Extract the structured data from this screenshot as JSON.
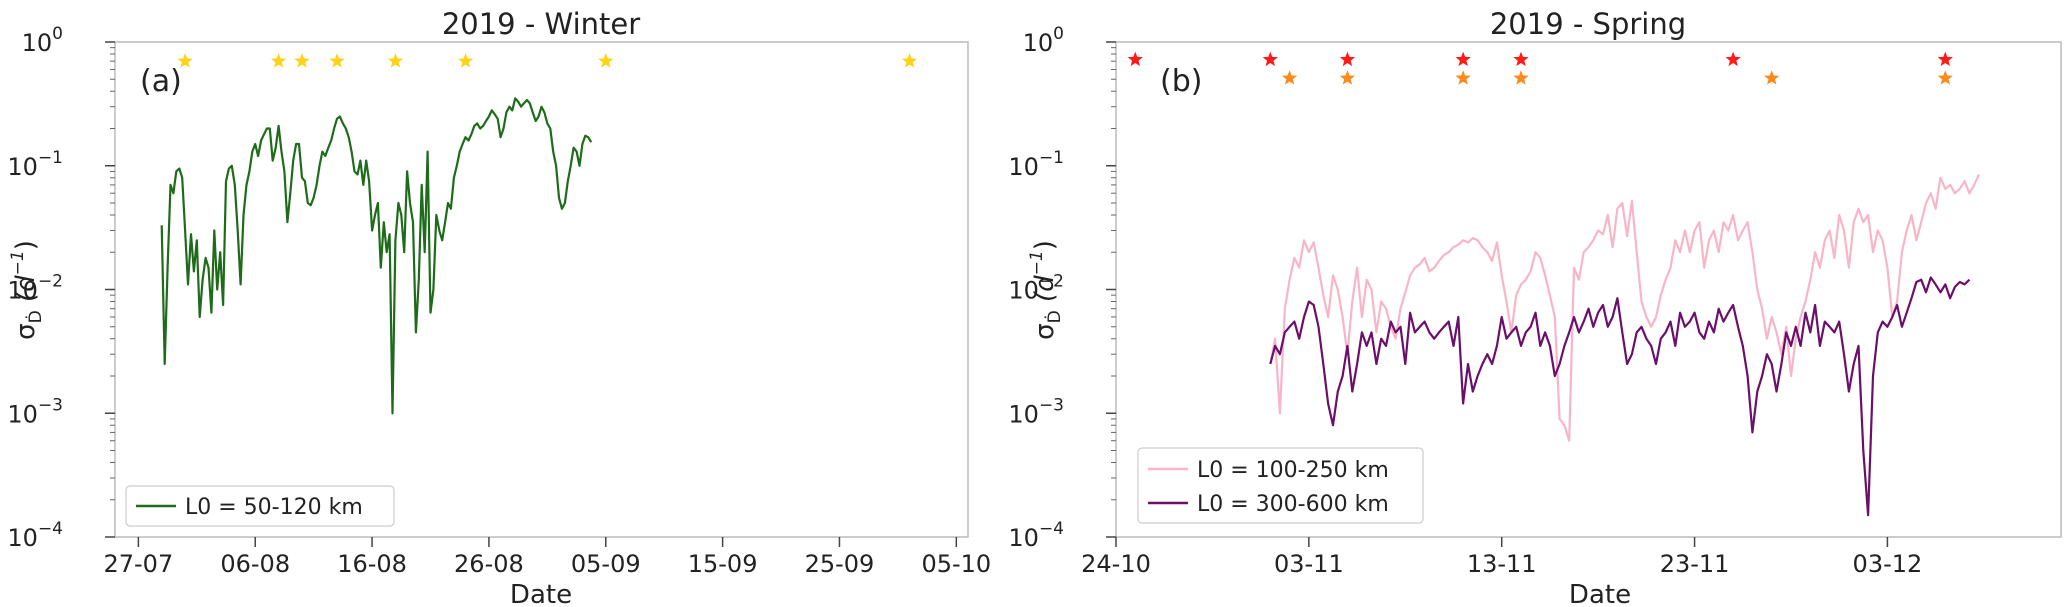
{
  "chart_data": [
    {
      "type": "line",
      "panel_label": "(a)",
      "title": "2019 - Winter",
      "xlabel": "Date",
      "ylabel": "σ_Ḋ (d⁻¹)",
      "ylabel_parts": {
        "sigma": "σ",
        "sub": "Ḋ",
        "unit_open": " (d",
        "unit_exp": "−1",
        "unit_close": ")"
      },
      "yscale": "log",
      "ylim": [
        "1e-4",
        "1e0"
      ],
      "ytick_labels": [
        {
          "base": "10",
          "exp": "0"
        },
        {
          "base": "10",
          "exp": "−1"
        },
        {
          "base": "10",
          "exp": "−2"
        },
        {
          "base": "10",
          "exp": "−3"
        },
        {
          "base": "10",
          "exp": "−4"
        }
      ],
      "xlim": [
        "2019-07-25",
        "2019-10-06"
      ],
      "xtick_labels": [
        "27-07",
        "06-08",
        "16-08",
        "26-08",
        "05-09",
        "15-09",
        "25-09",
        "05-10"
      ],
      "grid": false,
      "legend_position": "lower-left",
      "markers": [
        {
          "color": "#FFD21A",
          "y": 0.7,
          "dates": [
            "2019-07-31",
            "2019-08-08",
            "2019-08-10",
            "2019-08-13",
            "2019-08-18",
            "2019-08-24",
            "2019-09-05",
            "2019-10-01"
          ]
        }
      ],
      "series": [
        {
          "name": "L0 = 50-120 km",
          "color": "#1E6B1A",
          "x_start": "2019-07-29",
          "x_step_days": 0.25,
          "y": [
            0.033,
            0.0025,
            0.015,
            0.07,
            0.06,
            0.09,
            0.095,
            0.08,
            0.03,
            0.011,
            0.028,
            0.014,
            0.025,
            0.006,
            0.012,
            0.018,
            0.015,
            0.0065,
            0.03,
            0.01,
            0.02,
            0.0075,
            0.075,
            0.095,
            0.1,
            0.07,
            0.03,
            0.011,
            0.04,
            0.07,
            0.09,
            0.13,
            0.15,
            0.12,
            0.16,
            0.18,
            0.2,
            0.2,
            0.11,
            0.14,
            0.21,
            0.13,
            0.09,
            0.035,
            0.06,
            0.11,
            0.15,
            0.15,
            0.08,
            0.075,
            0.05,
            0.048,
            0.055,
            0.07,
            0.1,
            0.13,
            0.12,
            0.14,
            0.16,
            0.2,
            0.24,
            0.25,
            0.22,
            0.2,
            0.17,
            0.13,
            0.09,
            0.085,
            0.11,
            0.07,
            0.11,
            0.075,
            0.03,
            0.04,
            0.05,
            0.015,
            0.035,
            0.02,
            0.028,
            0.001,
            0.025,
            0.05,
            0.04,
            0.02,
            0.09,
            0.05,
            0.035,
            0.0045,
            0.012,
            0.07,
            0.02,
            0.13,
            0.0065,
            0.01,
            0.04,
            0.03,
            0.025,
            0.035,
            0.05,
            0.045,
            0.08,
            0.1,
            0.13,
            0.15,
            0.17,
            0.16,
            0.18,
            0.21,
            0.22,
            0.2,
            0.21,
            0.23,
            0.25,
            0.28,
            0.26,
            0.24,
            0.17,
            0.2,
            0.27,
            0.3,
            0.28,
            0.35,
            0.33,
            0.3,
            0.32,
            0.34,
            0.32,
            0.27,
            0.23,
            0.25,
            0.3,
            0.27,
            0.22,
            0.2,
            0.13,
            0.1,
            0.055,
            0.045,
            0.05,
            0.075,
            0.1,
            0.14,
            0.13,
            0.1,
            0.15,
            0.175,
            0.17,
            0.155
          ]
        }
      ]
    },
    {
      "type": "line",
      "panel_label": "(b)",
      "title": "2019 - Spring",
      "xlabel": "Date",
      "ylabel": "σ_Ḋ (d⁻¹)",
      "ylabel_parts": {
        "sigma": "σ",
        "sub": "Ḋ",
        "unit_open": " (d",
        "unit_exp": "−1",
        "unit_close": ")"
      },
      "yscale": "log",
      "ylim": [
        "1e-4",
        "1e0"
      ],
      "ytick_labels": [
        {
          "base": "10",
          "exp": "0"
        },
        {
          "base": "10",
          "exp": "−1"
        },
        {
          "base": "10",
          "exp": "−2"
        },
        {
          "base": "10",
          "exp": "−3"
        },
        {
          "base": "10",
          "exp": "−4"
        }
      ],
      "xlim": [
        "2019-10-24",
        "2019-12-12"
      ],
      "xtick_labels": [
        "24-10",
        "03-11",
        "13-11",
        "23-11",
        "03-12"
      ],
      "grid": false,
      "legend_position": "lower-left",
      "markers": [
        {
          "color": "#FF1A1A",
          "y": 0.72,
          "dates": [
            "2019-10-25",
            "2019-11-01",
            "2019-11-05",
            "2019-11-11",
            "2019-11-14",
            "2019-11-25",
            "2019-12-06"
          ]
        },
        {
          "color": "#FF8A1A",
          "y": 0.51,
          "dates": [
            "2019-11-02",
            "2019-11-05",
            "2019-11-11",
            "2019-11-14",
            "2019-11-27",
            "2019-12-06"
          ]
        }
      ],
      "series": [
        {
          "name": "L0 = 100-250 km",
          "color": "#F8B5C8",
          "x_start": "2019-11-01",
          "x_step_days": 0.25,
          "y": [
            0.0025,
            0.004,
            0.001,
            0.007,
            0.012,
            0.018,
            0.015,
            0.025,
            0.02,
            0.024,
            0.015,
            0.009,
            0.006,
            0.013,
            0.01,
            0.006,
            0.003,
            0.008,
            0.015,
            0.006,
            0.012,
            0.01,
            0.0045,
            0.008,
            0.007,
            0.005,
            0.004,
            0.007,
            0.0095,
            0.013,
            0.015,
            0.016,
            0.018,
            0.014,
            0.015,
            0.017,
            0.019,
            0.02,
            0.022,
            0.023,
            0.025,
            0.024,
            0.026,
            0.025,
            0.022,
            0.02,
            0.017,
            0.024,
            0.013,
            0.008,
            0.0045,
            0.009,
            0.011,
            0.012,
            0.014,
            0.02,
            0.018,
            0.013,
            0.009,
            0.006,
            0.0009,
            0.0008,
            0.0006,
            0.015,
            0.012,
            0.02,
            0.022,
            0.025,
            0.03,
            0.028,
            0.04,
            0.022,
            0.045,
            0.05,
            0.027,
            0.052,
            0.02,
            0.008,
            0.006,
            0.005,
            0.006,
            0.009,
            0.012,
            0.015,
            0.025,
            0.02,
            0.03,
            0.02,
            0.03,
            0.035,
            0.015,
            0.025,
            0.03,
            0.02,
            0.035,
            0.03,
            0.04,
            0.025,
            0.03,
            0.035,
            0.02,
            0.01,
            0.007,
            0.004,
            0.006,
            0.0045,
            0.003,
            0.005,
            0.002,
            0.004,
            0.006,
            0.008,
            0.012,
            0.02,
            0.015,
            0.025,
            0.03,
            0.018,
            0.04,
            0.03,
            0.015,
            0.035,
            0.045,
            0.035,
            0.04,
            0.02,
            0.03,
            0.025,
            0.015,
            0.006,
            0.008,
            0.02,
            0.03,
            0.04,
            0.025,
            0.035,
            0.05,
            0.06,
            0.045,
            0.08,
            0.065,
            0.07,
            0.06,
            0.065,
            0.075,
            0.06,
            0.07,
            0.085
          ]
        },
        {
          "name": "L0 = 300-600 km",
          "color": "#6B0F6B",
          "x_start": "2019-11-01",
          "x_step_days": 0.25,
          "y": [
            0.0025,
            0.0035,
            0.003,
            0.0045,
            0.005,
            0.0055,
            0.004,
            0.006,
            0.008,
            0.0075,
            0.005,
            0.0025,
            0.0012,
            0.0008,
            0.0015,
            0.002,
            0.0035,
            0.0015,
            0.0025,
            0.0045,
            0.0035,
            0.0045,
            0.0025,
            0.004,
            0.0035,
            0.0055,
            0.0045,
            0.005,
            0.0025,
            0.0065,
            0.0045,
            0.005,
            0.0055,
            0.0045,
            0.004,
            0.0045,
            0.005,
            0.0055,
            0.0035,
            0.006,
            0.0012,
            0.0025,
            0.0015,
            0.002,
            0.0025,
            0.003,
            0.0025,
            0.0035,
            0.006,
            0.004,
            0.0045,
            0.005,
            0.0035,
            0.0045,
            0.005,
            0.0065,
            0.0035,
            0.0045,
            0.0035,
            0.002,
            0.0025,
            0.0035,
            0.0045,
            0.006,
            0.0045,
            0.0055,
            0.007,
            0.005,
            0.0065,
            0.0075,
            0.005,
            0.006,
            0.0085,
            0.0045,
            0.0025,
            0.003,
            0.0045,
            0.005,
            0.004,
            0.0035,
            0.0025,
            0.004,
            0.0045,
            0.0055,
            0.0035,
            0.0065,
            0.005,
            0.0055,
            0.0065,
            0.0045,
            0.004,
            0.0055,
            0.0045,
            0.007,
            0.0055,
            0.0065,
            0.0075,
            0.005,
            0.0035,
            0.002,
            0.0007,
            0.0015,
            0.002,
            0.003,
            0.0025,
            0.0015,
            0.0025,
            0.0045,
            0.0035,
            0.005,
            0.0035,
            0.0065,
            0.0045,
            0.0075,
            0.0035,
            0.0055,
            0.005,
            0.0045,
            0.0055,
            0.003,
            0.0015,
            0.0025,
            0.0035,
            0.0005,
            0.00015,
            0.002,
            0.0045,
            0.0055,
            0.005,
            0.006,
            0.0075,
            0.005,
            0.0065,
            0.0085,
            0.0115,
            0.012,
            0.0095,
            0.0125,
            0.011,
            0.0095,
            0.011,
            0.0085,
            0.0105,
            0.0115,
            0.011,
            0.012
          ]
        }
      ]
    }
  ]
}
